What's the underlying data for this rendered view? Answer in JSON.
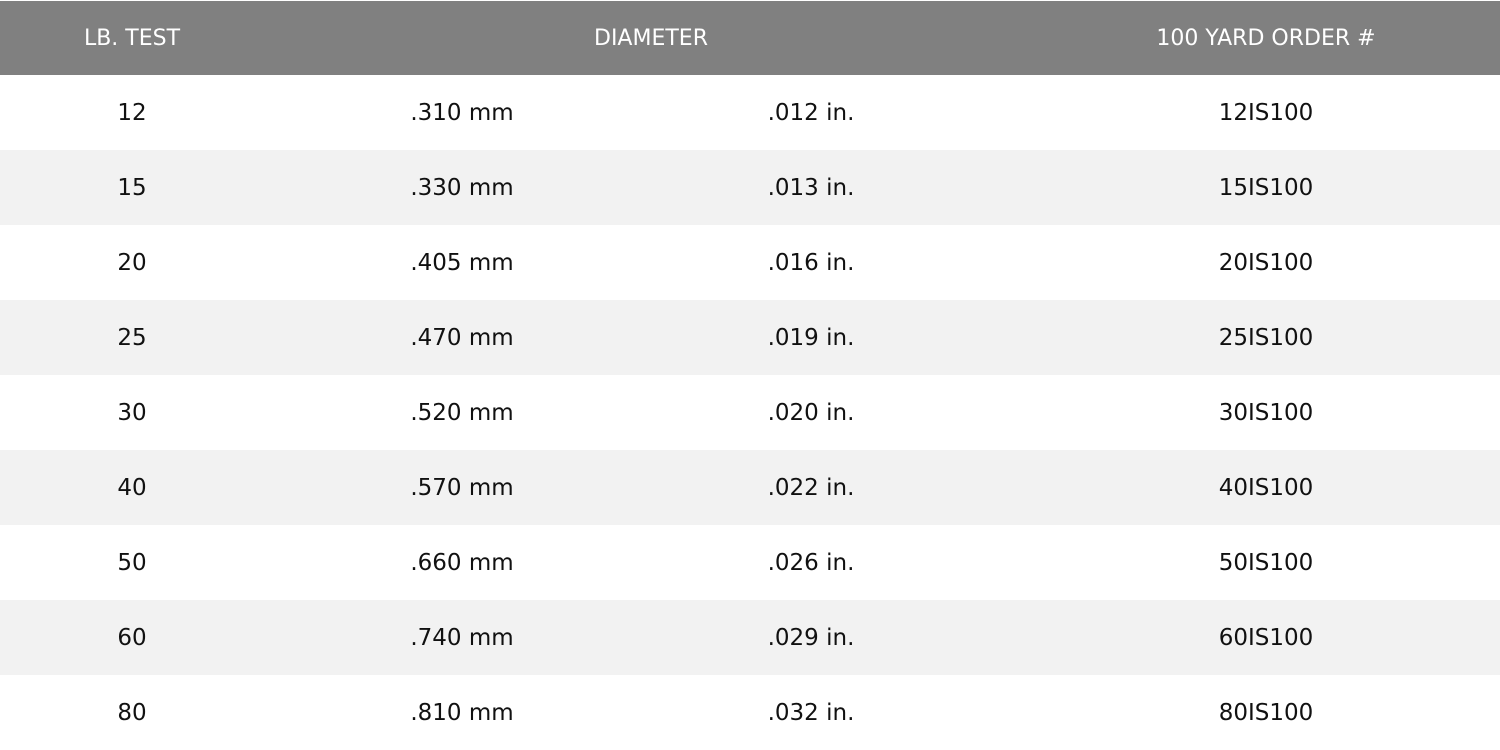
{
  "header": {
    "lb_test": "LB. TEST",
    "diameter": "DIAMETER",
    "order": "100 YARD ORDER #"
  },
  "rows": [
    {
      "lb": "12",
      "mm": ".310 mm",
      "in": ".012 in.",
      "order": "12IS100"
    },
    {
      "lb": "15",
      "mm": ".330 mm",
      "in": ".013 in.",
      "order": "15IS100"
    },
    {
      "lb": "20",
      "mm": ".405 mm",
      "in": ".016 in.",
      "order": "20IS100"
    },
    {
      "lb": "25",
      "mm": ".470 mm",
      "in": ".019 in.",
      "order": "25IS100"
    },
    {
      "lb": "30",
      "mm": ".520 mm",
      "in": ".020 in.",
      "order": "30IS100"
    },
    {
      "lb": "40",
      "mm": ".570 mm",
      "in": ".022 in.",
      "order": "40IS100"
    },
    {
      "lb": "50",
      "mm": ".660 mm",
      "in": ".026 in.",
      "order": "50IS100"
    },
    {
      "lb": "60",
      "mm": ".740 mm",
      "in": ".029 in.",
      "order": "60IS100"
    },
    {
      "lb": "80",
      "mm": ".810 mm",
      "in": ".032 in.",
      "order": "80IS100"
    }
  ],
  "colors": {
    "header_bg": "#808080",
    "header_text": "#ffffff",
    "alt_row_bg": "#f2f2f2"
  }
}
